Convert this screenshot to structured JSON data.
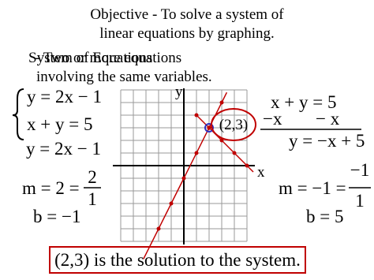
{
  "slide": {
    "title": "Objective - To solve a system of linear equations by graphing.",
    "definition": {
      "term": "System of Equations",
      "overlay": "- Two or more equations",
      "continuation": "involving the same variables."
    },
    "system": [
      "y = 2x − 1",
      "x + y = 5"
    ],
    "left_work": {
      "equation": "y = 2x − 1",
      "slope_prefix": "m = 2 =",
      "slope_num": "2",
      "slope_den": "1",
      "intercept": "b = −1"
    },
    "graph": {
      "y_label": "y",
      "x_label": "x",
      "point_label": "(2,3)"
    },
    "right_work": {
      "equation": "x + y = 5",
      "subtract_left": "−x",
      "subtract_right": "− x",
      "result": "y = −x + 5",
      "slope_prefix": "m = −1 =",
      "slope_num": "−1",
      "slope_den": "1",
      "intercept": "b = 5"
    },
    "conclusion": "(2,3) is the solution to the system."
  }
}
